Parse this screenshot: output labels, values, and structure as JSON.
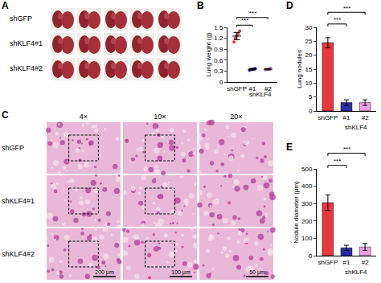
{
  "panels": {
    "A": {
      "label": "A",
      "rows": [
        "shGFP",
        "shKLF4#1",
        "shKLF4#2"
      ]
    },
    "C": {
      "label": "C",
      "rows": [
        "shGFP",
        "shKLF4#1",
        "shKLF4#2"
      ],
      "columns": [
        "4×",
        "10×",
        "20×"
      ],
      "scale_bars": [
        "200 μm",
        "100 μm",
        "50 μm"
      ]
    }
  },
  "chart_data": [
    {
      "panel": "B",
      "type": "strip",
      "y_label": "Lung weight (g)",
      "categories": [
        "shGFP",
        "#1",
        "#2"
      ],
      "category_groups": [
        {
          "label": "shKLF4",
          "categories": [
            "#1",
            "#2"
          ]
        }
      ],
      "points": [
        [
          1.1,
          1.2,
          1.27,
          1.33,
          1.4
        ],
        [
          0.32,
          0.34,
          0.35,
          0.36,
          0.37
        ],
        [
          0.33,
          0.34,
          0.35,
          0.37,
          0.38
        ]
      ],
      "means": [
        1.26,
        0.35,
        0.35
      ],
      "errors": [
        0.1,
        0.02,
        0.02
      ],
      "colors": [
        "#e8383d",
        "#2b2ba6",
        "#d98ad8"
      ],
      "marker": "circle",
      "ylim": [
        0,
        1.5
      ],
      "yticks": [
        0,
        0.3,
        0.6,
        0.9,
        1.2,
        1.5
      ],
      "annotations": [
        {
          "from": "shGFP",
          "to": "#1",
          "text": "***"
        },
        {
          "from": "shGFP",
          "to": "#2",
          "text": "***"
        }
      ]
    },
    {
      "panel": "D",
      "type": "bar",
      "y_label": "Lung nodules",
      "categories": [
        "shGFP",
        "#1",
        "#2"
      ],
      "category_groups": [
        {
          "label": "shKLF4",
          "categories": [
            "#1",
            "#2"
          ]
        }
      ],
      "values": [
        24.5,
        3,
        3
      ],
      "errors": [
        1.8,
        1,
        1
      ],
      "colors": [
        "#e8383d",
        "#2b2ba6",
        "#f0a0e8"
      ],
      "ylim": [
        0,
        30
      ],
      "yticks": [
        0,
        5,
        10,
        15,
        20,
        25,
        30
      ],
      "annotations": [
        {
          "from": "shGFP",
          "to": "#1",
          "text": "***"
        },
        {
          "from": "shGFP",
          "to": "#2",
          "text": "***"
        }
      ]
    },
    {
      "panel": "E",
      "type": "bar",
      "y_label": "Nodule diameter (μm)",
      "categories": [
        "shGFP",
        "#1",
        "#2"
      ],
      "category_groups": [
        {
          "label": "shKLF4",
          "categories": [
            "#1",
            "#2"
          ]
        }
      ],
      "values": [
        305,
        45,
        50
      ],
      "errors": [
        45,
        15,
        20
      ],
      "colors": [
        "#e8383d",
        "#2b2ba6",
        "#f0a0e8"
      ],
      "ylim": [
        0,
        500
      ],
      "yticks": [
        0,
        100,
        200,
        300,
        400,
        500
      ],
      "annotations": [
        {
          "from": "shGFP",
          "to": "#1",
          "text": "***"
        },
        {
          "from": "shGFP",
          "to": "#2",
          "text": "***"
        }
      ]
    }
  ]
}
